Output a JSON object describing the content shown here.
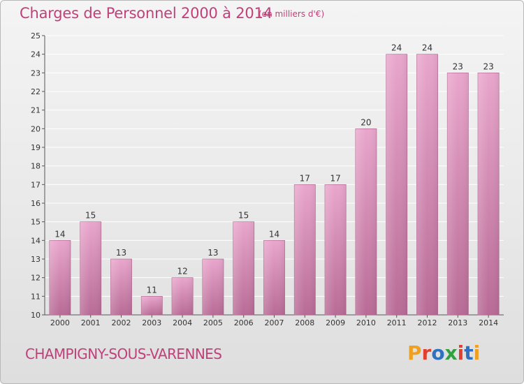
{
  "header": {
    "title": "Charges de Personnel 2000 à 2014",
    "unit": "(en milliers d'€)"
  },
  "footer": {
    "commune": "CHAMPIGNY-SOUS-VARENNES",
    "logo_text": "Proxiti",
    "logo_colors": [
      "#f0a020",
      "#e04030",
      "#3070c0",
      "#30a040",
      "#e04030",
      "#3070c0",
      "#f0a020"
    ]
  },
  "colors": {
    "title": "#c0407a",
    "bar_top": "#e9a6cc",
    "bar_bottom": "#b86b96",
    "grid": "#ffffff"
  },
  "chart_data": {
    "type": "bar",
    "title": "Charges de Personnel 2000 à 2014",
    "subtitle": "(en milliers d'€)",
    "categories": [
      "2000",
      "2001",
      "2002",
      "2003",
      "2004",
      "2005",
      "2006",
      "2007",
      "2008",
      "2009",
      "2010",
      "2011",
      "2012",
      "2013",
      "2014"
    ],
    "values": [
      14,
      15,
      13,
      11,
      12,
      13,
      15,
      14,
      17,
      17,
      20,
      24,
      24,
      23,
      23
    ],
    "data_labels": [
      "14",
      "15",
      "13",
      "11",
      "12",
      "13",
      "15",
      "14",
      "17",
      "17",
      "20",
      "24",
      "24",
      "23",
      "23"
    ],
    "ylim": [
      10,
      25
    ],
    "yticks": [
      "10",
      "11",
      "12",
      "13",
      "14",
      "15",
      "16",
      "17",
      "18",
      "19",
      "20",
      "21",
      "22",
      "23",
      "24",
      "25"
    ],
    "grid": true,
    "xlabel": "",
    "ylabel": ""
  }
}
